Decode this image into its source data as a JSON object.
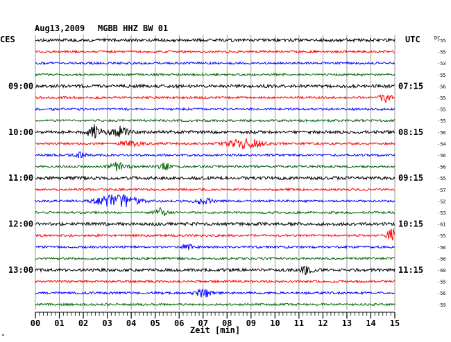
{
  "header": {
    "date": "Aug13,2009",
    "station": "MGBB HHZ BW 01"
  },
  "left_timezone": "CES",
  "right_timezone": "UTC",
  "dc_label": "DC",
  "footnote": "*",
  "chart_data": {
    "type": "line",
    "title": "Aug13,2009   MGBB HHZ BW 01",
    "xlabel": "Zeit [min]",
    "ylabel": "",
    "x_ticks": [
      "00",
      "01",
      "02",
      "03",
      "04",
      "05",
      "06",
      "07",
      "08",
      "09",
      "10",
      "11",
      "12",
      "13",
      "14",
      "15"
    ],
    "xlim": [
      0,
      15
    ],
    "grid": true,
    "trace_colors": [
      "#000000",
      "#ff0000",
      "#0000ff",
      "#006400"
    ],
    "left_hour_labels": [
      {
        "row": 4,
        "label": "09:00"
      },
      {
        "row": 8,
        "label": "10:00"
      },
      {
        "row": 12,
        "label": "11:00"
      },
      {
        "row": 16,
        "label": "12:00"
      },
      {
        "row": 20,
        "label": "13:00"
      }
    ],
    "right_hour_labels": [
      {
        "row": 4,
        "label": "07:15"
      },
      {
        "row": 8,
        "label": "08:15"
      },
      {
        "row": 12,
        "label": "09:15"
      },
      {
        "row": 16,
        "label": "10:15"
      },
      {
        "row": 20,
        "label": "11:15"
      }
    ],
    "dc_offsets": [
      "-55",
      "-55",
      "-53",
      "-55",
      "-56",
      "-55",
      "-55",
      "-55",
      "-56",
      "-54",
      "-56",
      "-56",
      "-55",
      "-57",
      "-52",
      "-53",
      "-61",
      "-55",
      "-56",
      "-56",
      "-60",
      "-55",
      "-56",
      "-59"
    ],
    "events": [
      {
        "row": 5,
        "minute": 14.6,
        "amp": 0.9,
        "dur": 0.4
      },
      {
        "row": 8,
        "minute": 2.5,
        "amp": 1.4,
        "dur": 0.5
      },
      {
        "row": 8,
        "minute": 3.5,
        "amp": 1.0,
        "dur": 0.6
      },
      {
        "row": 9,
        "minute": 4.0,
        "amp": 0.5,
        "dur": 0.8
      },
      {
        "row": 9,
        "minute": 8.8,
        "amp": 1.0,
        "dur": 1.2
      },
      {
        "row": 10,
        "minute": 1.8,
        "amp": 0.5,
        "dur": 0.5
      },
      {
        "row": 11,
        "minute": 3.5,
        "amp": 0.9,
        "dur": 0.6
      },
      {
        "row": 11,
        "minute": 5.4,
        "amp": 0.6,
        "dur": 0.4
      },
      {
        "row": 14,
        "minute": 3.4,
        "amp": 1.3,
        "dur": 1.4
      },
      {
        "row": 14,
        "minute": 7.0,
        "amp": 0.6,
        "dur": 0.6
      },
      {
        "row": 15,
        "minute": 5.2,
        "amp": 0.9,
        "dur": 0.4
      },
      {
        "row": 17,
        "minute": 14.9,
        "amp": 1.4,
        "dur": 0.4
      },
      {
        "row": 18,
        "minute": 6.3,
        "amp": 0.6,
        "dur": 0.5
      },
      {
        "row": 20,
        "minute": 11.3,
        "amp": 0.9,
        "dur": 0.4
      },
      {
        "row": 22,
        "minute": 7.0,
        "amp": 0.9,
        "dur": 0.6
      }
    ]
  }
}
